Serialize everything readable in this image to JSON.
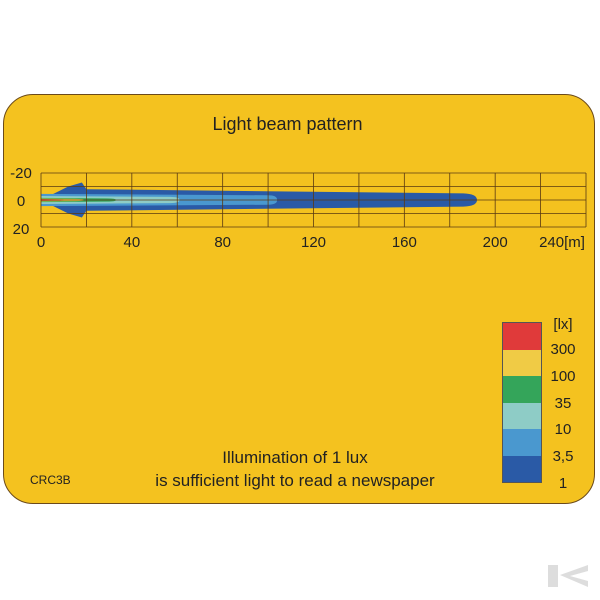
{
  "title": "Light beam pattern",
  "axis": {
    "x_ticks": [
      "0",
      "40",
      "80",
      "120",
      "160",
      "200",
      "240[m]"
    ],
    "y_ticks": [
      "-20",
      "0",
      "20"
    ],
    "x_range": [
      0,
      240
    ],
    "y_range": [
      -20,
      20
    ],
    "x_grid_step": 20,
    "y_grid_step": 10,
    "grid": true
  },
  "beam": {
    "contours": [
      {
        "lux": 1,
        "color": "#2A5AA6",
        "reach": 192
      },
      {
        "lux": 3.5,
        "color": "#4A98CF",
        "reach": 104
      },
      {
        "lux": 10,
        "color": "#8ECCC6",
        "reach": 61
      },
      {
        "lux": 35,
        "color": "#34A55A",
        "reach": 33
      },
      {
        "lux": 100,
        "color": "#F0D048",
        "reach": 19
      },
      {
        "lux": 300,
        "color": "#E03A3A",
        "reach": 10
      }
    ]
  },
  "legend": {
    "unit": "[lx]",
    "items": [
      {
        "label": "300",
        "color": "#E03A3A"
      },
      {
        "label": "100",
        "color": "#F0CB45"
      },
      {
        "label": "35",
        "color": "#34A55A"
      },
      {
        "label": "10",
        "color": "#8ECCC6"
      },
      {
        "label": "3,5",
        "color": "#4A98CF"
      },
      {
        "label": "1",
        "color": "#2A5AA6"
      }
    ]
  },
  "caption": {
    "line1": "Illumination of 1 lux",
    "line2": "is sufficient light to read a newspaper"
  },
  "model_code": "CRC3B",
  "background_color": "#F4C21F",
  "logo": "K"
}
